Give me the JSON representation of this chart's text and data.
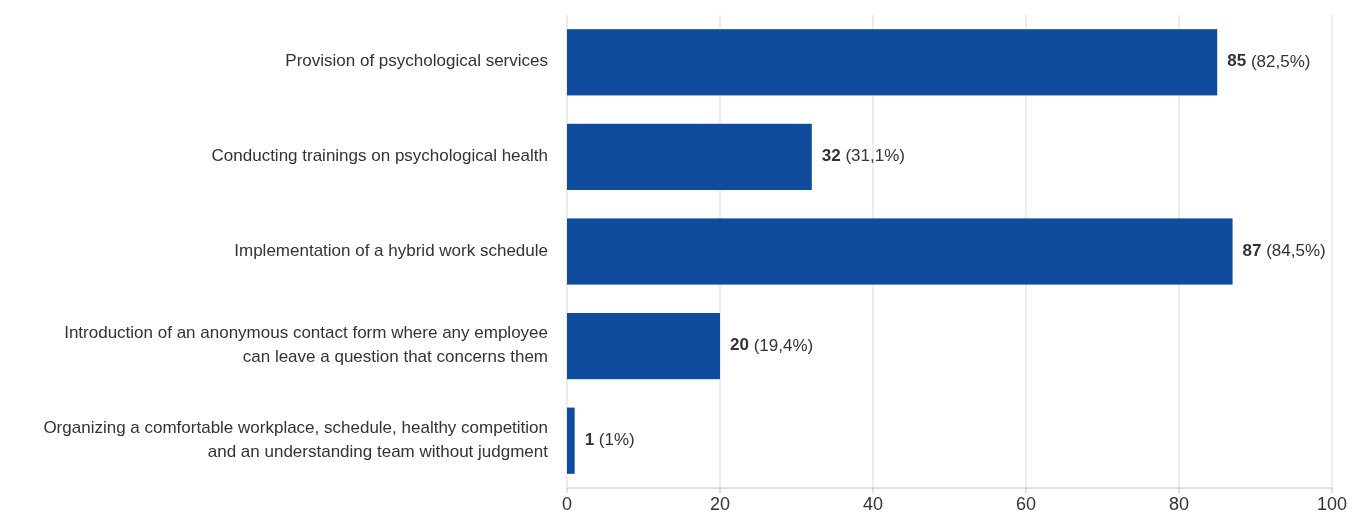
{
  "chart_data": {
    "type": "bar",
    "orientation": "horizontal",
    "categories": [
      "Provision of psychological services",
      "Conducting trainings on psychological health",
      "Implementation of a hybrid work schedule",
      "Introduction of an anonymous contact form where any employee can leave a question that concerns them",
      "Organizing a comfortable workplace, schedule, healthy competition and an understanding team without judgment"
    ],
    "values": [
      85,
      32,
      87,
      20,
      1
    ],
    "value_labels": [
      "85 (82,5%)",
      "32 (31,1%)",
      "87 (84,5%)",
      "20 (19,4%)",
      "1 (1%)"
    ],
    "color": "#0f4c9e",
    "xlim": [
      0,
      100
    ],
    "xticks": [
      0,
      20,
      40,
      60,
      80,
      100
    ],
    "grid": "x"
  }
}
